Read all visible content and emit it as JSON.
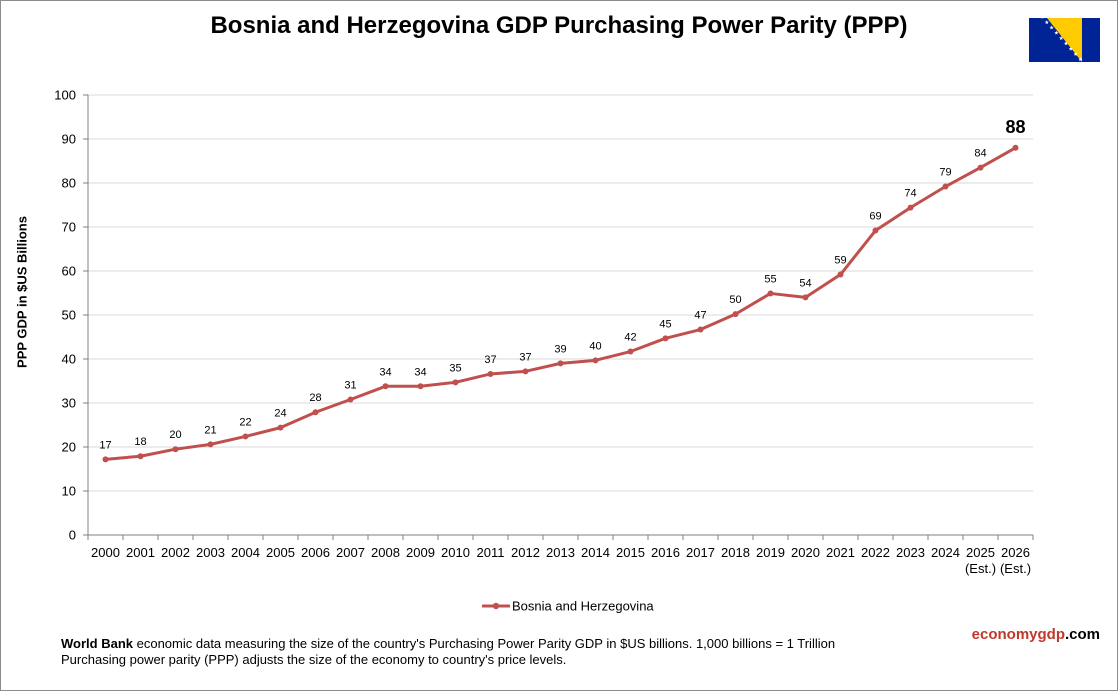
{
  "colors": {
    "line": "#c0504d",
    "grid": "#d9d9d9",
    "axis": "#808080",
    "flag_blue": "#002395",
    "flag_yellow": "#fecb00"
  },
  "icons": {
    "flag": "bosnia-and-herzegovina-flag-icon"
  },
  "chart_data": {
    "type": "line",
    "title": "Bosnia and Herzegovina GDP Purchasing Power Parity (PPP)",
    "ylabel": "PPP GDP in $US Billions",
    "xlabel": "",
    "ylim": [
      0,
      100
    ],
    "yticks": [
      0,
      10,
      20,
      30,
      40,
      50,
      60,
      70,
      80,
      90,
      100
    ],
    "grid": true,
    "legend_position": "bottom",
    "categories": [
      "2000",
      "2001",
      "2002",
      "2003",
      "2004",
      "2005",
      "2006",
      "2007",
      "2008",
      "2009",
      "2010",
      "2011",
      "2012",
      "2013",
      "2014",
      "2015",
      "2016",
      "2017",
      "2018",
      "2019",
      "2020",
      "2021",
      "2022",
      "2023",
      "2024",
      "2025",
      "2026"
    ],
    "category_sublabels": [
      "",
      "",
      "",
      "",
      "",
      "",
      "",
      "",
      "",
      "",
      "",
      "",
      "",
      "",
      "",
      "",
      "",
      "",
      "",
      "",
      "",
      "",
      "",
      "",
      "",
      "(Est.)",
      "(Est.)"
    ],
    "series": [
      {
        "name": "Bosnia and Herzegovina",
        "values": [
          17.2,
          17.9,
          19.5,
          20.6,
          22.4,
          24.4,
          27.9,
          30.8,
          33.8,
          33.8,
          34.7,
          36.6,
          37.2,
          39.0,
          39.7,
          41.7,
          44.7,
          46.7,
          50.2,
          54.9,
          54.0,
          59.2,
          69.2,
          74.4,
          79.2,
          83.5,
          88.0
        ],
        "labels": [
          "17",
          "18",
          "20",
          "21",
          "22",
          "24",
          "28",
          "31",
          "34",
          "34",
          "35",
          "37",
          "37",
          "39",
          "40",
          "42",
          "45",
          "47",
          "50",
          "55",
          "54",
          "59",
          "69",
          "74",
          "79",
          "84",
          "88"
        ]
      }
    ]
  },
  "footer": {
    "source_bold": "World Bank",
    "line1_rest": " economic data measuring the size of the country's Purchasing Power Parity GDP in $US billions. 1,000 billions = 1 Trillion",
    "line2": "Purchasing power parity (PPP) adjusts the size of the economy to country's price levels."
  },
  "brand": {
    "part1": "economygdp",
    "part2": ".com"
  }
}
